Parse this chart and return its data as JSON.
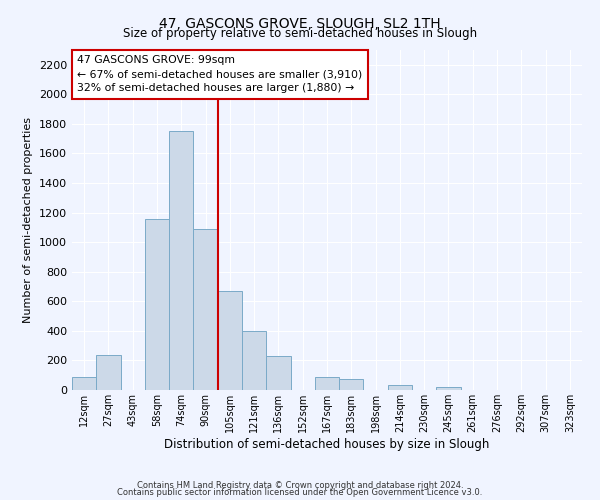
{
  "title": "47, GASCONS GROVE, SLOUGH, SL2 1TH",
  "subtitle": "Size of property relative to semi-detached houses in Slough",
  "xlabel": "Distribution of semi-detached houses by size in Slough",
  "ylabel": "Number of semi-detached properties",
  "bar_labels": [
    "12sqm",
    "27sqm",
    "43sqm",
    "58sqm",
    "74sqm",
    "90sqm",
    "105sqm",
    "121sqm",
    "136sqm",
    "152sqm",
    "167sqm",
    "183sqm",
    "198sqm",
    "214sqm",
    "230sqm",
    "245sqm",
    "261sqm",
    "276sqm",
    "292sqm",
    "307sqm",
    "323sqm"
  ],
  "bar_values": [
    90,
    240,
    0,
    1160,
    1750,
    1090,
    670,
    400,
    230,
    0,
    85,
    75,
    0,
    35,
    0,
    20,
    0,
    0,
    0,
    0,
    0
  ],
  "bar_color": "#ccd9e8",
  "bar_edge_color": "#7aaac8",
  "vline_color": "#cc0000",
  "annotation_line1": "47 GASCONS GROVE: 99sqm",
  "annotation_line2": "← 67% of semi-detached houses are smaller (3,910)",
  "annotation_line3": "32% of semi-detached houses are larger (1,880) →",
  "annotation_box_color": "white",
  "annotation_box_edge": "#cc0000",
  "ylim": [
    0,
    2300
  ],
  "yticks": [
    0,
    200,
    400,
    600,
    800,
    1000,
    1200,
    1400,
    1600,
    1800,
    2000,
    2200
  ],
  "footer_line1": "Contains HM Land Registry data © Crown copyright and database right 2024.",
  "footer_line2": "Contains public sector information licensed under the Open Government Licence v3.0.",
  "bg_color": "#f0f4ff",
  "grid_color": "#ffffff"
}
